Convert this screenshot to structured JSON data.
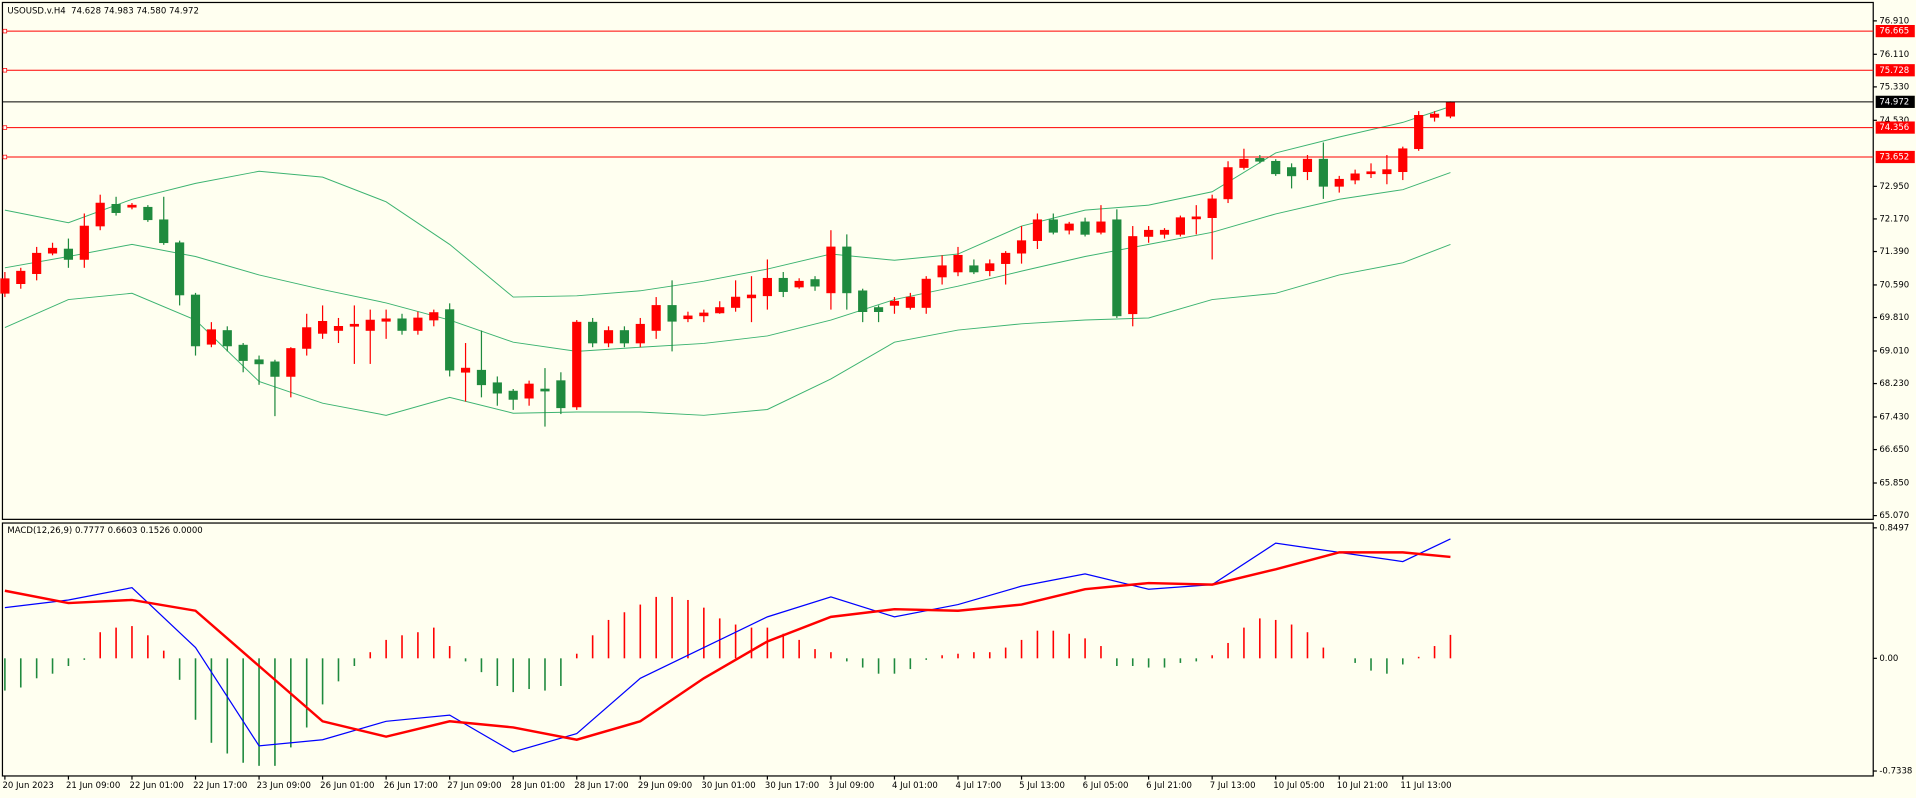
{
  "chart_data": [
    {
      "type": "candlestick",
      "title": "USOUSD.v.H4  74.628 74.983 74.580 74.972",
      "categories": [
        "20 Jun 2023",
        null,
        null,
        null,
        "21 Jun 09:00",
        null,
        null,
        null,
        "22 Jun 01:00",
        null,
        null,
        null,
        "22 Jun 17:00",
        null,
        null,
        null,
        "23 Jun 09:00",
        null,
        null,
        null,
        "26 Jun 01:00",
        null,
        null,
        null,
        "26 Jun 17:00",
        null,
        null,
        null,
        "27 Jun 09:00",
        null,
        null,
        null,
        "28 Jun 01:00",
        null,
        null,
        null,
        "28 Jun 17:00",
        null,
        null,
        null,
        "29 Jun 09:00",
        null,
        null,
        null,
        "30 Jun 01:00",
        null,
        null,
        null,
        "30 Jun 17:00",
        null,
        null,
        null,
        "3 Jul 09:00",
        null,
        null,
        null,
        "4 Jul 01:00",
        null,
        null,
        null,
        "4 Jul 17:00",
        null,
        null,
        null,
        "5 Jul 13:00",
        null,
        null,
        null,
        "6 Jul 05:00",
        null,
        null,
        null,
        "6 Jul 21:00",
        null,
        null,
        null,
        "7 Jul 13:00",
        null,
        null,
        null,
        "10 Jul 05:00",
        null,
        null,
        null,
        "10 Jul 21:00",
        null,
        null,
        null,
        "11 Jul 13:00",
        null,
        null,
        null
      ],
      "open": [
        70.39,
        70.62,
        70.86,
        71.35,
        71.45,
        71.2,
        72.0,
        72.52,
        72.45,
        72.45,
        72.15,
        71.6,
        70.35,
        69.17,
        69.5,
        69.15,
        68.8,
        68.75,
        68.4,
        69.07,
        69.43,
        69.5,
        69.6,
        69.5,
        69.72,
        69.78,
        69.5,
        69.75,
        70.0,
        68.5,
        68.55,
        68.25,
        68.05,
        67.88,
        68.1,
        68.3,
        67.67,
        69.7,
        69.2,
        69.5,
        69.2,
        69.5,
        70.1,
        69.78,
        69.85,
        69.92,
        70.05,
        70.28,
        70.33,
        70.75,
        70.54,
        70.72,
        70.4,
        71.5,
        70.45,
        70.05,
        70.1,
        70.05,
        70.05,
        70.78,
        70.9,
        71.05,
        70.93,
        71.1,
        71.35,
        71.65,
        72.15,
        71.9,
        72.1,
        71.85,
        72.15,
        69.9,
        71.75,
        71.8,
        71.8,
        72.17,
        72.2,
        72.65,
        73.4,
        73.62,
        73.55,
        73.4,
        73.3,
        73.6,
        72.95,
        73.1,
        73.25,
        73.25,
        73.3,
        73.85,
        74.6,
        74.628
      ],
      "high": [
        70.9,
        71.0,
        71.5,
        71.6,
        71.7,
        72.3,
        72.75,
        72.7,
        72.55,
        72.5,
        72.7,
        71.65,
        70.4,
        69.7,
        69.6,
        69.2,
        68.9,
        68.8,
        69.1,
        69.9,
        70.1,
        69.8,
        70.1,
        70.0,
        70.0,
        69.9,
        69.95,
        70.0,
        70.15,
        69.2,
        69.5,
        68.4,
        68.1,
        68.3,
        68.6,
        68.5,
        69.75,
        69.8,
        69.6,
        69.6,
        69.8,
        70.3,
        70.7,
        69.95,
        70.0,
        70.2,
        70.7,
        70.8,
        71.2,
        70.9,
        70.75,
        70.8,
        71.9,
        71.8,
        70.5,
        70.1,
        70.3,
        70.4,
        70.8,
        71.3,
        71.5,
        71.2,
        71.2,
        71.4,
        72.0,
        72.3,
        72.3,
        72.1,
        72.2,
        72.5,
        72.4,
        72.0,
        72.0,
        71.95,
        72.25,
        72.5,
        72.75,
        73.55,
        73.85,
        73.7,
        73.6,
        73.5,
        73.7,
        74.0,
        73.2,
        73.35,
        73.5,
        73.7,
        73.9,
        74.75,
        74.75,
        74.983
      ],
      "low": [
        70.3,
        70.5,
        70.7,
        71.3,
        71.0,
        71.0,
        71.9,
        72.25,
        72.4,
        72.1,
        71.55,
        70.1,
        68.9,
        69.1,
        69.0,
        68.5,
        68.2,
        67.45,
        67.9,
        68.9,
        69.3,
        69.2,
        68.7,
        68.7,
        69.3,
        69.4,
        69.4,
        69.6,
        68.4,
        67.8,
        67.9,
        67.7,
        67.6,
        67.7,
        67.2,
        67.5,
        67.6,
        69.1,
        69.1,
        69.1,
        69.1,
        69.3,
        69.0,
        69.7,
        69.7,
        69.9,
        69.95,
        69.7,
        70.0,
        70.3,
        70.5,
        70.45,
        70.0,
        70.0,
        69.7,
        69.7,
        69.9,
        70.0,
        69.9,
        70.6,
        70.8,
        70.85,
        70.8,
        70.6,
        71.1,
        71.45,
        71.8,
        71.8,
        71.75,
        71.8,
        69.8,
        69.6,
        71.6,
        71.7,
        71.75,
        71.8,
        71.2,
        72.55,
        73.35,
        73.5,
        73.2,
        72.9,
        73.1,
        72.65,
        72.8,
        73.0,
        73.15,
        73.0,
        73.1,
        73.8,
        74.5,
        74.58
      ],
      "close": [
        70.74,
        70.92,
        71.35,
        71.47,
        71.2,
        72.0,
        72.55,
        72.32,
        72.5,
        72.15,
        71.6,
        70.35,
        69.13,
        69.52,
        69.13,
        68.78,
        68.7,
        68.4,
        69.07,
        69.57,
        69.72,
        69.6,
        69.65,
        69.75,
        69.78,
        69.5,
        69.8,
        69.93,
        68.55,
        68.6,
        68.2,
        68.0,
        67.85,
        68.22,
        68.05,
        67.65,
        69.7,
        69.2,
        69.5,
        69.2,
        69.65,
        70.1,
        69.72,
        69.85,
        69.92,
        70.05,
        70.3,
        70.35,
        70.75,
        70.43,
        70.68,
        70.56,
        71.5,
        70.4,
        69.95,
        69.95,
        70.2,
        70.3,
        70.73,
        71.05,
        71.3,
        70.9,
        71.1,
        71.35,
        71.65,
        72.15,
        71.85,
        72.05,
        71.8,
        72.1,
        69.85,
        71.75,
        71.9,
        71.9,
        72.2,
        72.22,
        72.65,
        73.4,
        73.6,
        73.55,
        73.25,
        73.2,
        73.6,
        72.95,
        73.12,
        73.25,
        73.3,
        73.35,
        73.85,
        74.65,
        74.68,
        74.972
      ],
      "up_color": "#ff0000",
      "down_color": "#1f8a3e",
      "bands": {
        "color": "#3cb371",
        "x": [
          0,
          4,
          8,
          12,
          16,
          20,
          24,
          28,
          32,
          36,
          40,
          44,
          48,
          52,
          56,
          60,
          64,
          68,
          72,
          76,
          80,
          84,
          88,
          91
        ],
        "upper": [
          72.38,
          72.08,
          72.64,
          73.02,
          73.31,
          73.17,
          72.58,
          71.56,
          70.3,
          70.33,
          70.45,
          70.68,
          70.97,
          71.33,
          71.18,
          71.33,
          72.0,
          72.38,
          72.5,
          72.82,
          73.75,
          74.13,
          74.48,
          74.86
        ],
        "middle": [
          71.0,
          71.27,
          71.56,
          71.27,
          70.83,
          70.48,
          70.16,
          69.75,
          69.22,
          69.0,
          69.1,
          69.19,
          69.37,
          69.75,
          70.24,
          70.56,
          70.92,
          71.27,
          71.56,
          71.85,
          72.29,
          72.64,
          72.87,
          73.28
        ],
        "lower": [
          69.57,
          70.24,
          70.39,
          69.75,
          68.28,
          67.76,
          67.47,
          67.9,
          67.52,
          67.55,
          67.55,
          67.47,
          67.61,
          68.34,
          69.22,
          69.51,
          69.66,
          69.75,
          69.8,
          70.24,
          70.39,
          70.83,
          71.12,
          71.56
        ]
      },
      "levels": [
        76.665,
        75.728,
        74.356,
        73.652
      ],
      "level_color": "#ff0000",
      "last_price": 74.972,
      "last_price_color": "#000000",
      "ylim": [
        64.98,
        77.35
      ],
      "yticks": [
        {
          "value": 76.91,
          "label": "76.910"
        },
        {
          "value": 76.11,
          "label": "76.110"
        },
        {
          "value": 75.33,
          "label": "75.330"
        },
        {
          "value": 74.53,
          "label": "74.530"
        },
        {
          "value": 72.95,
          "label": "72.950"
        },
        {
          "value": 72.17,
          "label": "72.170"
        },
        {
          "value": 71.39,
          "label": "71.390"
        },
        {
          "value": 70.59,
          "label": "70.590"
        },
        {
          "value": 69.81,
          "label": "69.810"
        },
        {
          "value": 69.01,
          "label": "69.010"
        },
        {
          "value": 68.23,
          "label": "68.230"
        },
        {
          "value": 67.43,
          "label": "67.430"
        },
        {
          "value": 66.65,
          "label": "66.650"
        },
        {
          "value": 65.85,
          "label": "65.850"
        },
        {
          "value": 65.07,
          "label": "65.070"
        }
      ]
    },
    {
      "type": "macd",
      "title": "MACD(12,26,9) 0.7777 0.6603 0.1526 0.0000",
      "histogram": [
        -0.21,
        -0.19,
        -0.13,
        -0.1,
        -0.05,
        -0.01,
        0.17,
        0.2,
        0.21,
        0.15,
        0.05,
        -0.14,
        -0.4,
        -0.55,
        -0.62,
        -0.68,
        -0.7,
        -0.7,
        -0.58,
        -0.45,
        -0.3,
        -0.15,
        -0.05,
        0.04,
        0.12,
        0.15,
        0.17,
        0.2,
        0.08,
        -0.02,
        -0.09,
        -0.18,
        -0.22,
        -0.2,
        -0.21,
        -0.18,
        0.03,
        0.15,
        0.25,
        0.3,
        0.35,
        0.4,
        0.4,
        0.38,
        0.33,
        0.26,
        0.22,
        0.2,
        0.2,
        0.16,
        0.12,
        0.06,
        0.04,
        -0.02,
        -0.06,
        -0.1,
        -0.1,
        -0.07,
        -0.01,
        0.02,
        0.03,
        0.04,
        0.04,
        0.07,
        0.12,
        0.18,
        0.18,
        0.16,
        0.13,
        0.08,
        -0.05,
        -0.05,
        -0.06,
        -0.06,
        -0.03,
        -0.02,
        0.02,
        0.1,
        0.2,
        0.26,
        0.25,
        0.22,
        0.17,
        0.07,
        0.0,
        -0.03,
        -0.08,
        -0.1,
        -0.04,
        0.01,
        0.08,
        0.1526
      ],
      "up_color": "#ff0000",
      "down_color": "#1f8a3e",
      "series": [
        {
          "color": "#0000ff",
          "width": 1,
          "x": [
            0,
            4,
            8,
            12,
            16,
            20,
            24,
            28,
            32,
            36,
            40,
            44,
            48,
            52,
            56,
            60,
            64,
            68,
            72,
            76,
            80,
            84,
            88,
            91
          ],
          "values": [
            0.33,
            0.38,
            0.46,
            0.07,
            -0.57,
            -0.53,
            -0.41,
            -0.37,
            -0.61,
            -0.49,
            -0.13,
            0.07,
            0.27,
            0.4,
            0.27,
            0.35,
            0.47,
            0.55,
            0.45,
            0.48,
            0.75,
            0.69,
            0.63,
            0.7777
          ]
        },
        {
          "color": "#ff0000",
          "width": 2,
          "x": [
            0,
            4,
            8,
            12,
            16,
            20,
            24,
            28,
            32,
            36,
            40,
            44,
            48,
            52,
            56,
            60,
            64,
            68,
            72,
            76,
            80,
            84,
            88,
            91
          ],
          "values": [
            0.44,
            0.36,
            0.38,
            0.31,
            -0.05,
            -0.41,
            -0.51,
            -0.41,
            -0.45,
            -0.53,
            -0.41,
            -0.13,
            0.11,
            0.27,
            0.32,
            0.31,
            0.35,
            0.45,
            0.49,
            0.48,
            0.58,
            0.69,
            0.69,
            0.6603
          ]
        }
      ],
      "ylim": [
        -0.766,
        0.881
      ],
      "yticks": [
        0.8497,
        {
          "value": 0,
          "label": "0.00"
        },
        -0.7338
      ]
    }
  ]
}
